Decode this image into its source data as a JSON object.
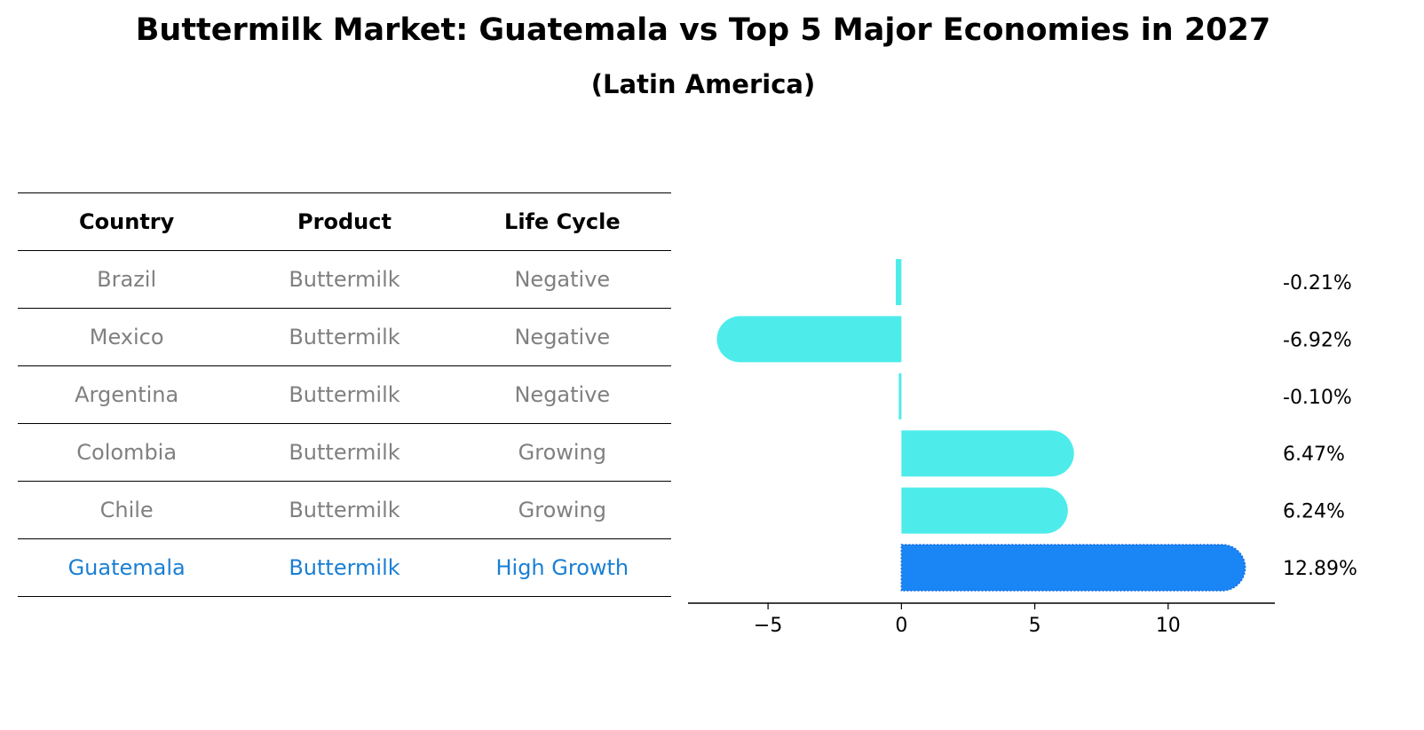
{
  "title": "Buttermilk Market: Guatemala vs Top 5 Major Economies in 2027",
  "subtitle": "(Latin America)",
  "table": {
    "headers": [
      "Country",
      "Product",
      "Life Cycle"
    ],
    "rows": [
      [
        "Brazil",
        "Buttermilk",
        "Negative"
      ],
      [
        "Mexico",
        "Buttermilk",
        "Negative"
      ],
      [
        "Argentina",
        "Buttermilk",
        "Negative"
      ],
      [
        "Colombia",
        "Buttermilk",
        "Growing"
      ],
      [
        "Chile",
        "Buttermilk",
        "Growing"
      ],
      [
        "Guatemala",
        "Buttermilk",
        "High Growth"
      ]
    ]
  },
  "colors": {
    "bar": "#4deceb",
    "highlight": "#1a85f5",
    "muted_text": "#808080",
    "highlight_text": "#1a7fd4"
  },
  "chart_data": {
    "type": "bar",
    "orientation": "horizontal",
    "categories": [
      "Brazil",
      "Mexico",
      "Argentina",
      "Colombia",
      "Chile",
      "Guatemala"
    ],
    "values": [
      -0.21,
      -6.92,
      -0.1,
      6.47,
      6.24,
      12.89
    ],
    "value_labels": [
      "-0.21%",
      "-6.92%",
      "-0.10%",
      "6.47%",
      "6.24%",
      "12.89%"
    ],
    "highlight": "Guatemala",
    "xlim": [
      -8,
      14
    ],
    "xticks": [
      -5,
      0,
      5,
      10
    ],
    "xtick_labels": [
      "−5",
      "0",
      "5",
      "10"
    ],
    "grid": false
  }
}
